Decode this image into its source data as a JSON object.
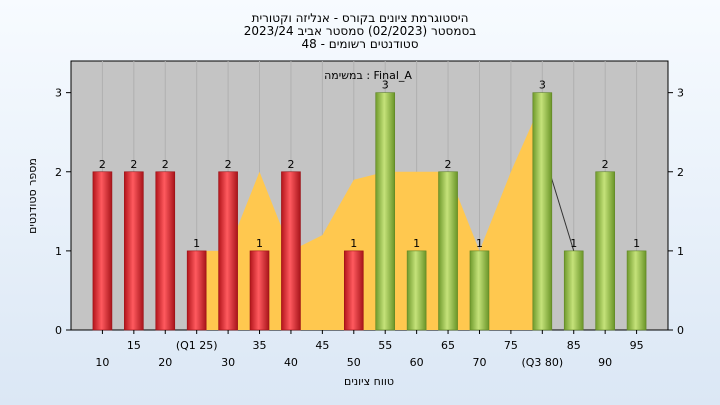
{
  "chart_data": {
    "type": "bar",
    "title_lines": [
      "היסטוגרמת ציונים בקורס - אנליזה וקטורית",
      "בסמסטר  (02/2023)  סמסטר אביב 2023/24",
      "סטודנטים רשומים - 48"
    ],
    "annotation": "במשימה : Final_A",
    "xlabel": "טווח ציונים",
    "ylabel": "מספר סטודנטים",
    "ylim": [
      0,
      3.4
    ],
    "yticks": [
      0,
      1,
      2,
      3
    ],
    "x": [
      10,
      15,
      20,
      25,
      30,
      35,
      40,
      45,
      50,
      55,
      60,
      65,
      70,
      75,
      80,
      85,
      90,
      95
    ],
    "x_tick_labels": [
      "10",
      "15",
      "20",
      "(Q1 25)",
      "30",
      "35",
      "40",
      "45",
      "50",
      "55",
      "60",
      "65",
      "70",
      "75",
      "(Q3 80)",
      "85",
      "90",
      "95"
    ],
    "values": [
      2,
      2,
      2,
      1,
      2,
      1,
      2,
      0,
      1,
      3,
      1,
      2,
      1,
      0,
      3,
      1,
      2,
      1
    ],
    "bar_colors": [
      "red",
      "red",
      "red",
      "red",
      "red",
      "red",
      "red",
      "red",
      "red",
      "green",
      "green",
      "green",
      "green",
      "green",
      "green",
      "green",
      "green",
      "green"
    ],
    "colors": {
      "red_bar": "#e8232a",
      "green_bar": "#8fc043",
      "area": "#ffc84f",
      "plot_bg": "#c4c4c4"
    },
    "area_points": [
      [
        25,
        0.0
      ],
      [
        25,
        1.0
      ],
      [
        30,
        1.0
      ],
      [
        35,
        2.0
      ],
      [
        40,
        1.0
      ],
      [
        45,
        1.2
      ],
      [
        50,
        1.9
      ],
      [
        55,
        2.0
      ],
      [
        60,
        2.0
      ],
      [
        65,
        2.0
      ],
      [
        70,
        1.0
      ],
      [
        75,
        2.0
      ],
      [
        80,
        2.9
      ],
      [
        80,
        0.0
      ]
    ],
    "trend_line": [
      [
        80,
        2.3
      ],
      [
        85,
        1.0
      ]
    ],
    "grid": true
  }
}
